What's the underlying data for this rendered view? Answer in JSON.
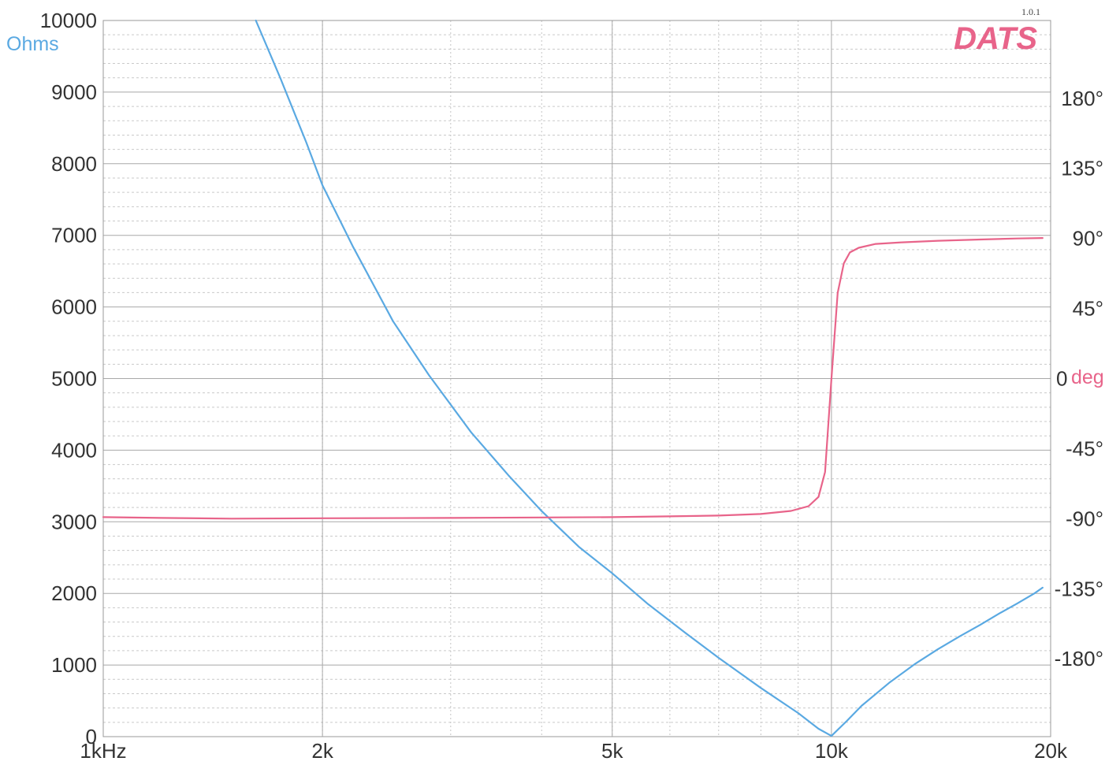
{
  "chart_data": {
    "type": "line",
    "title": "",
    "brand": "DATS",
    "version": "1.0.1",
    "x_scale": "log",
    "xlim": [
      1000,
      20000
    ],
    "x_ticks": [
      {
        "value": 1000,
        "label": "1kHz"
      },
      {
        "value": 2000,
        "label": "2k"
      },
      {
        "value": 5000,
        "label": "5k"
      },
      {
        "value": 10000,
        "label": "10k"
      },
      {
        "value": 20000,
        "label": "20k"
      }
    ],
    "y_left": {
      "unit_label": "Ohms",
      "ylim": [
        0,
        10000
      ],
      "ticks": [
        {
          "value": 0,
          "label": "0"
        },
        {
          "value": 1000,
          "label": "1000"
        },
        {
          "value": 2000,
          "label": "2000"
        },
        {
          "value": 3000,
          "label": "3000"
        },
        {
          "value": 4000,
          "label": "4000"
        },
        {
          "value": 5000,
          "label": "5000"
        },
        {
          "value": 6000,
          "label": "6000"
        },
        {
          "value": 7000,
          "label": "7000"
        },
        {
          "value": 8000,
          "label": "8000"
        },
        {
          "value": 9000,
          "label": "9000"
        },
        {
          "value": 10000,
          "label": "10000"
        }
      ]
    },
    "y_right": {
      "unit_label": "deg",
      "ylim": [
        -230,
        230
      ],
      "ticks": [
        {
          "value": 180,
          "label": "180°"
        },
        {
          "value": 135,
          "label": "135°"
        },
        {
          "value": 90,
          "label": "90°"
        },
        {
          "value": 45,
          "label": "45°"
        },
        {
          "value": 0,
          "label": "0"
        },
        {
          "value": -45,
          "label": "-45°"
        },
        {
          "value": -90,
          "label": "-90°"
        },
        {
          "value": -135,
          "label": "-135°"
        },
        {
          "value": -180,
          "label": "-180°"
        }
      ]
    },
    "grid": true,
    "series": [
      {
        "axis": "left",
        "color": "#5aa9e2",
        "x": [
          1620,
          1750,
          1900,
          2000,
          2200,
          2500,
          2800,
          3200,
          3600,
          4000,
          4500,
          5000,
          5600,
          6300,
          7000,
          8000,
          9000,
          9600,
          10000,
          10500,
          11000,
          12000,
          13000,
          14000,
          15000,
          16000,
          17000,
          18000,
          19000,
          19500
        ],
        "y": [
          10000,
          9200,
          8300,
          7700,
          6850,
          5800,
          5050,
          4250,
          3650,
          3150,
          2650,
          2280,
          1850,
          1450,
          1100,
          680,
          330,
          110,
          10,
          220,
          430,
          750,
          1010,
          1220,
          1400,
          1560,
          1720,
          1860,
          2000,
          2080
        ]
      },
      {
        "axis": "right",
        "color": "#e8648a",
        "x": [
          1000,
          1200,
          1500,
          2000,
          3000,
          4000,
          5000,
          6000,
          7000,
          8000,
          8800,
          9300,
          9600,
          9800,
          10000,
          10200,
          10400,
          10600,
          10900,
          11500,
          12500,
          14000,
          16000,
          18000,
          19500
        ],
        "y": [
          -89,
          -89.5,
          -90,
          -89.7,
          -89.5,
          -89.2,
          -89,
          -88.5,
          -88,
          -87,
          -85,
          -82,
          -76,
          -60,
          0,
          55,
          74,
          81,
          84,
          86.5,
          87.5,
          88.5,
          89.3,
          90,
          90.3
        ]
      }
    ]
  }
}
